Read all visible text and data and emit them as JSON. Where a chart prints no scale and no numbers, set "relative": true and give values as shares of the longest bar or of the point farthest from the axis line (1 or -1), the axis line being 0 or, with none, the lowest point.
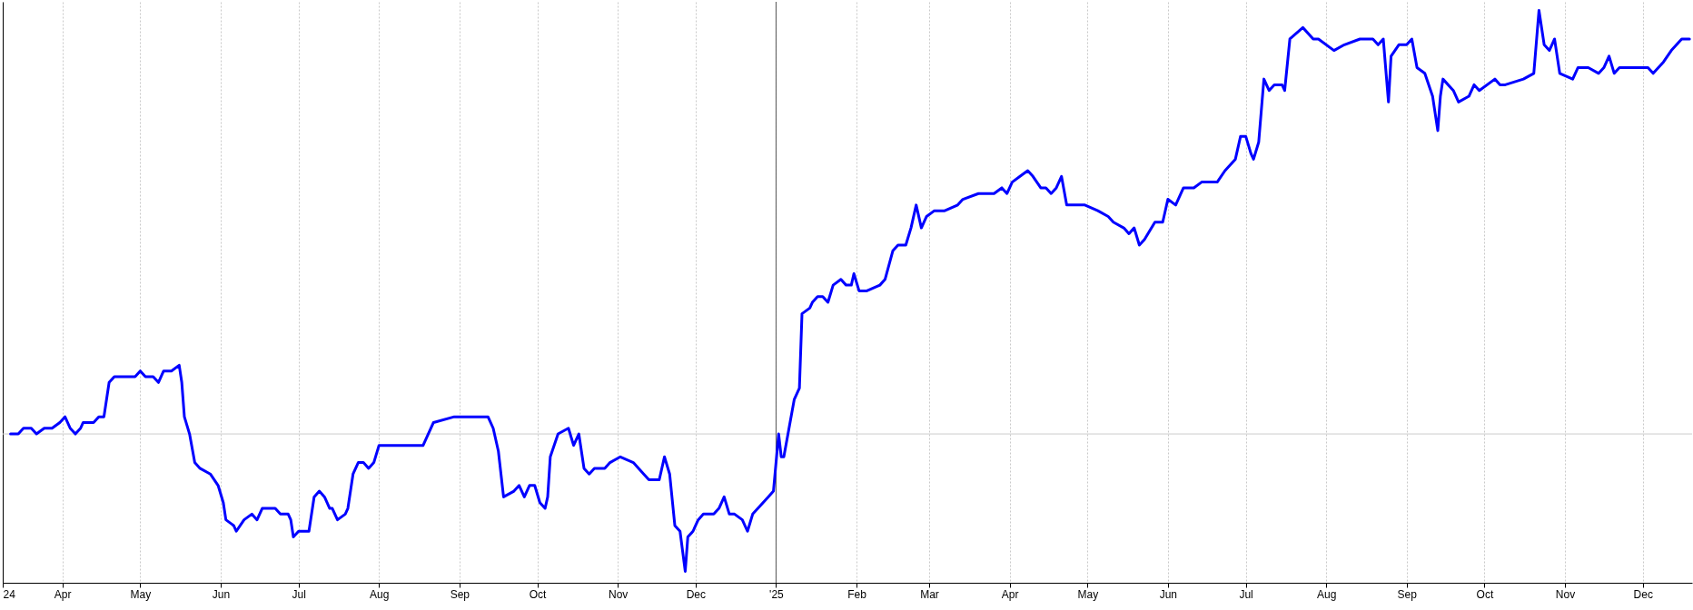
{
  "chart_data": {
    "type": "line",
    "relative": true,
    "grid": "x",
    "xlim": [
      "2024-03-09",
      "2025-12-20"
    ],
    "xticks": [
      {
        "value": "2024-03-09",
        "label": "24"
      },
      {
        "value": "2024-04-01",
        "label": "Apr"
      },
      {
        "value": "2024-05-01",
        "label": "May"
      },
      {
        "value": "2024-06-01",
        "label": "Jun"
      },
      {
        "value": "2024-07-01",
        "label": "Jul"
      },
      {
        "value": "2024-08-01",
        "label": "Aug"
      },
      {
        "value": "2024-09-01",
        "label": "Sep"
      },
      {
        "value": "2024-10-01",
        "label": "Oct"
      },
      {
        "value": "2024-11-01",
        "label": "Nov"
      },
      {
        "value": "2024-12-01",
        "label": "Dec"
      },
      {
        "value": "2025-01-01",
        "label": "'25"
      },
      {
        "value": "2025-02-01",
        "label": "Feb"
      },
      {
        "value": "2025-03-01",
        "label": "Mar"
      },
      {
        "value": "2025-04-01",
        "label": "Apr"
      },
      {
        "value": "2025-05-01",
        "label": "May"
      },
      {
        "value": "2025-06-01",
        "label": "Jun"
      },
      {
        "value": "2025-07-01",
        "label": "Jul"
      },
      {
        "value": "2025-08-01",
        "label": "Aug"
      },
      {
        "value": "2025-09-01",
        "label": "Sep"
      },
      {
        "value": "2025-10-01",
        "label": "Oct"
      },
      {
        "value": "2025-11-01",
        "label": "Nov"
      },
      {
        "value": "2025-12-01",
        "label": "Dec"
      }
    ],
    "ref_lines": [
      {
        "axis": "y",
        "value": 0.26,
        "color": "#cccccc"
      },
      {
        "axis": "x",
        "value": "2025-01-01",
        "color": "#555555"
      }
    ],
    "x": [
      "2024-03-12",
      "2024-03-15",
      "2024-03-17",
      "2024-03-20",
      "2024-03-22",
      "2024-03-25",
      "2024-03-28",
      "2024-03-31",
      "2024-04-02",
      "2024-04-04",
      "2024-04-06",
      "2024-04-08",
      "2024-04-09",
      "2024-04-13",
      "2024-04-15",
      "2024-04-17",
      "2024-04-19",
      "2024-04-21",
      "2024-04-25",
      "2024-04-29",
      "2024-05-01",
      "2024-05-03",
      "2024-05-06",
      "2024-05-08",
      "2024-05-10",
      "2024-05-13",
      "2024-05-16",
      "2024-05-17",
      "2024-05-18",
      "2024-05-20",
      "2024-05-22",
      "2024-05-24",
      "2024-05-28",
      "2024-05-31",
      "2024-06-02",
      "2024-06-03",
      "2024-06-06",
      "2024-06-07",
      "2024-06-10",
      "2024-06-13",
      "2024-06-15",
      "2024-06-17",
      "2024-06-22",
      "2024-06-24",
      "2024-06-27",
      "2024-06-28",
      "2024-06-29",
      "2024-07-01",
      "2024-07-05",
      "2024-07-07",
      "2024-07-09",
      "2024-07-11",
      "2024-07-13",
      "2024-07-14",
      "2024-07-16",
      "2024-07-19",
      "2024-07-20",
      "2024-07-22",
      "2024-07-24",
      "2024-07-26",
      "2024-07-28",
      "2024-07-30",
      "2024-08-01",
      "2024-08-09",
      "2024-08-15",
      "2024-08-18",
      "2024-08-22",
      "2024-08-30",
      "2024-09-01",
      "2024-09-03",
      "2024-09-07",
      "2024-09-12",
      "2024-09-14",
      "2024-09-16",
      "2024-09-18",
      "2024-09-22",
      "2024-09-24",
      "2024-09-26",
      "2024-09-28",
      "2024-09-30",
      "2024-10-02",
      "2024-10-04",
      "2024-10-05",
      "2024-10-06",
      "2024-10-09",
      "2024-10-13",
      "2024-10-15",
      "2024-10-17",
      "2024-10-19",
      "2024-10-21",
      "2024-10-23",
      "2024-10-27",
      "2024-10-29",
      "2024-11-02",
      "2024-11-07",
      "2024-11-11",
      "2024-11-13",
      "2024-11-17",
      "2024-11-19",
      "2024-11-21",
      "2024-11-23",
      "2024-11-25",
      "2024-11-27",
      "2024-11-28",
      "2024-11-30",
      "2024-12-02",
      "2024-12-04",
      "2024-12-08",
      "2024-12-10",
      "2024-12-12",
      "2024-12-14",
      "2024-12-16",
      "2024-12-19",
      "2024-12-21",
      "2024-12-23",
      "2024-12-25",
      "2024-12-29",
      "2024-12-31",
      "2025-01-02",
      "2025-01-03",
      "2025-01-04",
      "2025-01-06",
      "2025-01-08",
      "2025-01-10",
      "2025-01-11",
      "2025-01-14",
      "2025-01-15",
      "2025-01-17",
      "2025-01-19",
      "2025-01-21",
      "2025-01-23",
      "2025-01-26",
      "2025-01-28",
      "2025-01-30",
      "2025-01-31",
      "2025-02-02",
      "2025-02-05",
      "2025-02-10",
      "2025-02-12",
      "2025-02-15",
      "2025-02-17",
      "2025-02-20",
      "2025-02-22",
      "2025-02-24",
      "2025-02-26",
      "2025-02-28",
      "2025-03-03",
      "2025-03-07",
      "2025-03-12",
      "2025-03-14",
      "2025-03-20",
      "2025-03-26",
      "2025-03-29",
      "2025-03-31",
      "2025-04-02",
      "2025-04-05",
      "2025-04-08",
      "2025-04-10",
      "2025-04-13",
      "2025-04-15",
      "2025-04-17",
      "2025-04-19",
      "2025-04-21",
      "2025-04-23",
      "2025-04-26",
      "2025-04-30",
      "2025-05-05",
      "2025-05-09",
      "2025-05-11",
      "2025-05-15",
      "2025-05-17",
      "2025-05-19",
      "2025-05-21",
      "2025-05-23",
      "2025-05-27",
      "2025-05-30",
      "2025-06-01",
      "2025-06-04",
      "2025-06-07",
      "2025-06-11",
      "2025-06-14",
      "2025-06-20",
      "2025-06-23",
      "2025-06-25",
      "2025-06-27",
      "2025-06-29",
      "2025-07-01",
      "2025-07-03",
      "2025-07-04",
      "2025-07-06",
      "2025-07-08",
      "2025-07-10",
      "2025-07-12",
      "2025-07-15",
      "2025-07-16",
      "2025-07-18",
      "2025-07-23",
      "2025-07-27",
      "2025-07-29",
      "2025-08-04",
      "2025-08-08",
      "2025-08-14",
      "2025-08-19",
      "2025-08-21",
      "2025-08-23",
      "2025-08-25",
      "2025-08-26",
      "2025-08-29",
      "2025-09-01",
      "2025-09-03",
      "2025-09-05",
      "2025-09-08",
      "2025-09-11",
      "2025-09-13",
      "2025-09-14",
      "2025-09-15",
      "2025-09-19",
      "2025-09-21",
      "2025-09-25",
      "2025-09-27",
      "2025-09-29",
      "2025-10-05",
      "2025-10-07",
      "2025-10-09",
      "2025-10-16",
      "2025-10-20",
      "2025-10-22",
      "2025-10-24",
      "2025-10-26",
      "2025-10-28",
      "2025-10-30",
      "2025-11-04",
      "2025-11-06",
      "2025-11-10",
      "2025-11-14",
      "2025-11-16",
      "2025-11-18",
      "2025-11-20",
      "2025-11-22",
      "2025-12-01",
      "2025-12-03",
      "2025-12-05",
      "2025-12-07",
      "2025-12-09",
      "2025-12-12",
      "2025-12-16",
      "2025-12-19"
    ],
    "series": [
      {
        "color": "#0000ff",
        "values": [
          0.26,
          0.26,
          0.27,
          0.27,
          0.26,
          0.27,
          0.27,
          0.28,
          0.29,
          0.27,
          0.26,
          0.27,
          0.28,
          0.28,
          0.29,
          0.29,
          0.35,
          0.36,
          0.36,
          0.36,
          0.37,
          0.36,
          0.36,
          0.35,
          0.37,
          0.37,
          0.38,
          0.35,
          0.29,
          0.26,
          0.21,
          0.2,
          0.19,
          0.17,
          0.14,
          0.11,
          0.1,
          0.09,
          0.11,
          0.12,
          0.11,
          0.13,
          0.13,
          0.12,
          0.12,
          0.11,
          0.08,
          0.09,
          0.09,
          0.15,
          0.16,
          0.15,
          0.13,
          0.13,
          0.11,
          0.12,
          0.13,
          0.19,
          0.21,
          0.21,
          0.2,
          0.21,
          0.24,
          0.24,
          0.24,
          0.24,
          0.28,
          0.29,
          0.29,
          0.29,
          0.29,
          0.29,
          0.27,
          0.23,
          0.15,
          0.16,
          0.17,
          0.15,
          0.17,
          0.17,
          0.14,
          0.13,
          0.15,
          0.22,
          0.26,
          0.27,
          0.24,
          0.26,
          0.2,
          0.19,
          0.2,
          0.2,
          0.21,
          0.22,
          0.21,
          0.19,
          0.18,
          0.18,
          0.22,
          0.19,
          0.1,
          0.09,
          0.02,
          0.08,
          0.09,
          0.11,
          0.12,
          0.12,
          0.13,
          0.15,
          0.12,
          0.12,
          0.11,
          0.09,
          0.12,
          0.13,
          0.15,
          0.16,
          0.26,
          0.22,
          0.22,
          0.27,
          0.32,
          0.34,
          0.47,
          0.48,
          0.49,
          0.5,
          0.5,
          0.49,
          0.52,
          0.53,
          0.52,
          0.52,
          0.54,
          0.51,
          0.51,
          0.52,
          0.53,
          0.58,
          0.59,
          0.59,
          0.62,
          0.66,
          0.62,
          0.64,
          0.65,
          0.65,
          0.66,
          0.67,
          0.68,
          0.68,
          0.69,
          0.68,
          0.7,
          0.71,
          0.72,
          0.71,
          0.69,
          0.69,
          0.68,
          0.69,
          0.71,
          0.66,
          0.66,
          0.66,
          0.65,
          0.64,
          0.63,
          0.62,
          0.61,
          0.62,
          0.59,
          0.6,
          0.63,
          0.63,
          0.67,
          0.66,
          0.69,
          0.69,
          0.7,
          0.7,
          0.72,
          0.73,
          0.74,
          0.78,
          0.78,
          0.75,
          0.74,
          0.77,
          0.88,
          0.86,
          0.87,
          0.87,
          0.86,
          0.95,
          0.97,
          0.95,
          0.95,
          0.93,
          0.94,
          0.95,
          0.95,
          0.94,
          0.95,
          0.84,
          0.92,
          0.94,
          0.94,
          0.95,
          0.9,
          0.89,
          0.85,
          0.79,
          0.85,
          0.88,
          0.86,
          0.84,
          0.85,
          0.87,
          0.86,
          0.88,
          0.87,
          0.87,
          0.88,
          0.89,
          1.0,
          0.94,
          0.93,
          0.95,
          0.89,
          0.88,
          0.9,
          0.9,
          0.89,
          0.9,
          0.92,
          0.89,
          0.9,
          0.9,
          0.9,
          0.89,
          0.9,
          0.91,
          0.93,
          0.95,
          0.95
        ]
      }
    ]
  }
}
